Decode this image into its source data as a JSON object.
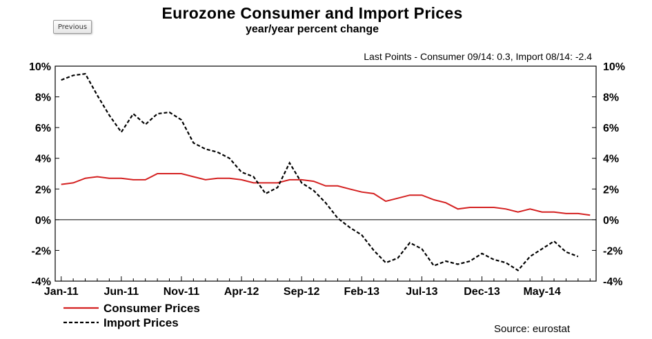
{
  "nav": {
    "previous_label": "Previous"
  },
  "chart_data": {
    "type": "line",
    "title": "Eurozone Consumer and Import Prices",
    "subtitle": "year/year percent change",
    "annotation": "Last Points - Consumer 09/14: 0.3, Import 08/14: -2.4",
    "source": "Source: eurostat",
    "x_tick_labels": [
      "Jan-11",
      "Jun-11",
      "Nov-11",
      "Apr-12",
      "Sep-12",
      "Feb-13",
      "Jul-13",
      "Dec-13",
      "May-14"
    ],
    "y_tick_labels": [
      "10%",
      "8%",
      "6%",
      "4%",
      "2%",
      "0%",
      "-2%",
      "-4%"
    ],
    "y_tick_values": [
      10,
      8,
      6,
      4,
      2,
      0,
      -2,
      -4
    ],
    "ylim": [
      -4,
      10
    ],
    "x_start": "2011-01",
    "x_end": "2014-09",
    "legend_placement": "bottom-left",
    "series": [
      {
        "name": "Consumer Prices",
        "style": "solid",
        "color": "#d42020",
        "values": [
          2.3,
          2.4,
          2.7,
          2.8,
          2.7,
          2.7,
          2.6,
          2.6,
          3.0,
          3.0,
          3.0,
          2.8,
          2.6,
          2.7,
          2.7,
          2.6,
          2.4,
          2.4,
          2.4,
          2.6,
          2.6,
          2.5,
          2.2,
          2.2,
          2.0,
          1.8,
          1.7,
          1.2,
          1.4,
          1.6,
          1.6,
          1.3,
          1.1,
          0.7,
          0.8,
          0.8,
          0.8,
          0.7,
          0.5,
          0.7,
          0.5,
          0.5,
          0.4,
          0.4,
          0.3
        ]
      },
      {
        "name": "Import Prices",
        "style": "dashed",
        "color": "#000000",
        "values": [
          9.1,
          9.4,
          9.5,
          8.1,
          6.8,
          5.7,
          6.9,
          6.2,
          6.9,
          7.0,
          6.5,
          5.0,
          4.6,
          4.4,
          4.0,
          3.1,
          2.8,
          1.7,
          2.1,
          3.7,
          2.4,
          1.9,
          1.1,
          0.1,
          -0.5,
          -1.0,
          -2.0,
          -2.8,
          -2.5,
          -1.5,
          -1.9,
          -3.0,
          -2.7,
          -2.9,
          -2.7,
          -2.2,
          -2.6,
          -2.8,
          -3.3,
          -2.4,
          -1.9,
          -1.4,
          -2.1,
          -2.4
        ]
      }
    ]
  }
}
